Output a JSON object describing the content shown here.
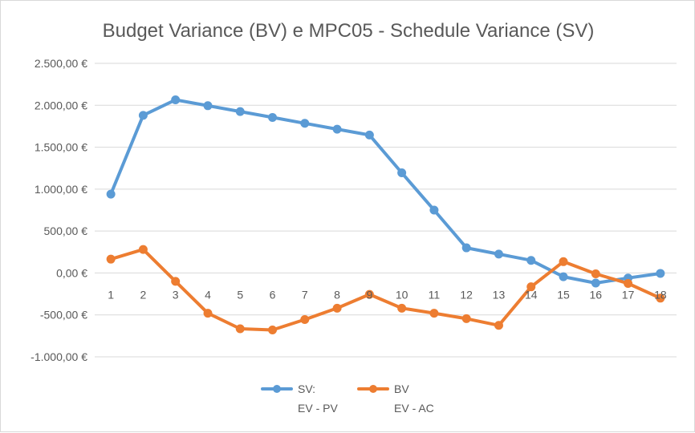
{
  "chart_data": {
    "type": "line",
    "title": "Budget Variance (BV) e MPC05 - Schedule Variance (SV)",
    "xlabel": "",
    "ylabel": "",
    "categories": [
      "1",
      "2",
      "3",
      "4",
      "5",
      "6",
      "7",
      "8",
      "9",
      "10",
      "11",
      "12",
      "13",
      "14",
      "15",
      "16",
      "17",
      "18"
    ],
    "y_ticks": [
      {
        "value": 2500,
        "label": "2.500,00 €"
      },
      {
        "value": 2000,
        "label": "2.000,00 €"
      },
      {
        "value": 1500,
        "label": "1.500,00 €"
      },
      {
        "value": 1000,
        "label": "1.000,00 €"
      },
      {
        "value": 500,
        "label": "500,00 €"
      },
      {
        "value": 0,
        "label": "0,00 €"
      },
      {
        "value": -500,
        "label": "-500,00 €"
      },
      {
        "value": -1000,
        "label": "-1.000,00 €"
      }
    ],
    "ylim": [
      -1000,
      2500
    ],
    "grid": true,
    "legend_position": "bottom",
    "series": [
      {
        "name": "SV:",
        "name_line2": "EV - PV",
        "color": "#5B9BD5",
        "values": [
          940,
          1880,
          2065,
          1995,
          1925,
          1855,
          1785,
          1715,
          1645,
          1195,
          750,
          300,
          225,
          150,
          -45,
          -120,
          -60,
          -5
        ]
      },
      {
        "name": "BV",
        "name_line2": "EV - AC",
        "color": "#ED7D31",
        "values": [
          165,
          280,
          -100,
          -480,
          -665,
          -680,
          -555,
          -420,
          -255,
          -420,
          -480,
          -545,
          -625,
          -165,
          135,
          -10,
          -125,
          -300
        ]
      }
    ]
  }
}
